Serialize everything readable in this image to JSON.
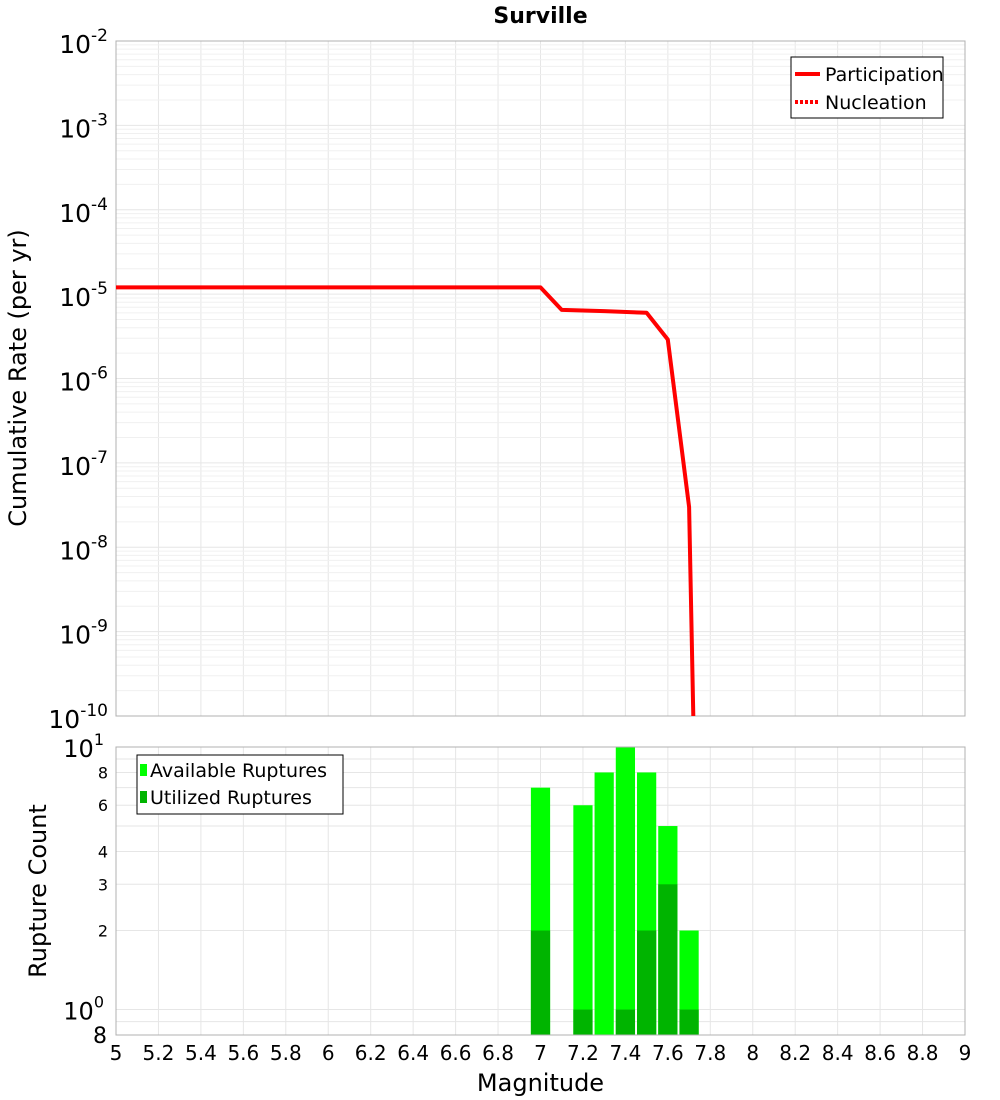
{
  "chart_data": [
    {
      "type": "line",
      "title": "Surville",
      "xlabel": "",
      "ylabel": "Cumulative Rate (per yr)",
      "xlim": [
        5,
        9
      ],
      "ylim": [
        1e-10,
        0.01
      ],
      "yscale": "log",
      "y_tick_exponents": [
        "-2",
        "-3",
        "-4",
        "-5",
        "-6",
        "-7",
        "-8",
        "-9",
        "-10"
      ],
      "y_tick_base": "10",
      "legend": {
        "placement": "top-right"
      },
      "grid": true,
      "series": [
        {
          "name": "Participation",
          "color": "#ff0000",
          "dash": "solid",
          "x": [
            5.0,
            7.0,
            7.1,
            7.3,
            7.5,
            7.6,
            7.7,
            7.72
          ],
          "y": [
            1.2e-05,
            1.2e-05,
            6.5e-06,
            6.3e-06,
            6e-06,
            2.9e-06,
            3e-08,
            1e-10
          ]
        },
        {
          "name": "Nucleation",
          "color": "#ff0000",
          "dash": "dotted",
          "x": [
            5.0,
            7.0,
            7.1,
            7.3,
            7.5,
            7.6,
            7.7,
            7.72
          ],
          "y": [
            1.2e-05,
            1.2e-05,
            6.5e-06,
            6.3e-06,
            6e-06,
            2.9e-06,
            3e-08,
            1e-10
          ]
        }
      ]
    },
    {
      "type": "bar",
      "title": "",
      "xlabel": "Magnitude",
      "ylabel": "Rupture Count",
      "xlim": [
        5,
        9
      ],
      "ylim": [
        0.8,
        10
      ],
      "yscale": "log",
      "x_ticks": [
        "5",
        "5.2",
        "5.4",
        "5.6",
        "5.8",
        "6",
        "6.2",
        "6.4",
        "6.6",
        "6.8",
        "7",
        "7.2",
        "7.4",
        "7.6",
        "7.8",
        "8",
        "8.2",
        "8.4",
        "8.6",
        "8.8",
        "9"
      ],
      "y_ticks_minor_labels": [
        "8",
        "6",
        "4",
        "3",
        "2"
      ],
      "y_tick_bottom_label": "8",
      "y_tick_base": "10",
      "y_tick_exponents": [
        "1",
        "0"
      ],
      "legend": {
        "placement": "top-left"
      },
      "grid": true,
      "bin_width": 0.1,
      "series": [
        {
          "name": "Available Ruptures",
          "color": "#00ff00",
          "x": [
            7.0,
            7.2,
            7.3,
            7.4,
            7.5,
            7.6,
            7.7
          ],
          "values": [
            7,
            6,
            8,
            10,
            8,
            5,
            2
          ]
        },
        {
          "name": "Utilized Ruptures",
          "color": "#00b400",
          "x": [
            7.0,
            7.2,
            7.3,
            7.4,
            7.5,
            7.6,
            7.7
          ],
          "values": [
            2,
            1,
            0,
            1,
            2,
            3,
            1
          ]
        }
      ]
    }
  ]
}
